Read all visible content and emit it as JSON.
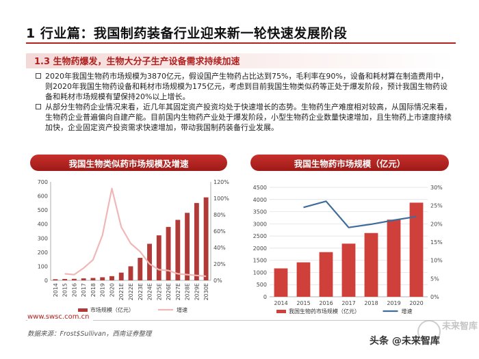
{
  "page": {
    "title": "1 行业篇：我国制药装备行业迎来新一轮快速发展阶段",
    "subtitle": "1.3 生物药爆发，生物大分子生产设备需求持续加速",
    "bullets": [
      "2020年我国生物药市场规模为3870亿元，假设国产生物药占比达到75%，毛利率在90%，设备和耗材算在制造费用中，则2020年我国生物药设备和耗材市场规模为175亿元，考虑到目前我国生物类似药等正处于爆发阶段，预计我国生物药设备和耗材市场规模有望保持20%以上增长。",
      "从部分生物药企业情况来看，近几年其固定资产投资均处于快速增长的态势。生物药生产难度相对较高，从国际情况来看，生物药企业普遍偏向自建产能。目前国内生物药产业处于爆发阶段，小型生物药企业数量快速增加，且生物药上市速度持续加快，企业固定资产投资需求快速增加，带动我国制药装备行业发展。"
    ]
  },
  "footer": {
    "url": "www.swsc.com.cn",
    "source": "数据来源：Frost$Sullivan，西南证券整理",
    "watermark": "头条 @未来智库",
    "watermark_faint": "未来智库"
  },
  "chart_data": [
    {
      "type": "bar",
      "title": "我国生物类似药市场规模及增速",
      "categories": [
        "2014",
        "2015",
        "2016",
        "2017",
        "2018",
        "2019",
        "2020",
        "2021E",
        "2022E",
        "2023E",
        "2024E",
        "2025E",
        "2026E",
        "2027E",
        "2028E",
        "2029E",
        "2030E"
      ],
      "series": [
        {
          "name": "市场规模（亿元）",
          "kind": "bar",
          "axis": "left",
          "color": "#b03a37",
          "values": [
            8,
            10,
            11,
            14,
            17,
            22,
            30,
            55,
            100,
            160,
            260,
            320,
            380,
            430,
            480,
            550,
            590
          ]
        },
        {
          "name": "增速",
          "kind": "line",
          "axis": "right",
          "color": "#f0b7b7",
          "values": [
            null,
            8,
            7,
            15,
            25,
            55,
            112,
            65,
            45,
            35,
            20,
            13,
            12,
            8,
            7,
            6,
            5
          ]
        }
      ],
      "left_ylim": [
        0,
        700
      ],
      "left_ticks": [
        "0",
        "100",
        "200",
        "300",
        "400",
        "500",
        "600",
        "700"
      ],
      "right_ylim": [
        0,
        120
      ],
      "right_ticks": [
        "0%",
        "20%",
        "40%",
        "60%",
        "80%",
        "100%",
        "120%"
      ]
    },
    {
      "type": "bar",
      "title": "我国生物药市场规模（亿元）",
      "categories": [
        "2014",
        "2015",
        "2016",
        "2017",
        "2018",
        "2019",
        "2020"
      ],
      "series": [
        {
          "name": "我国生物药市场规模（亿元）",
          "kind": "bar",
          "axis": "left",
          "color": "#cf403b",
          "values": [
            1167,
            1416,
            1836,
            2185,
            2622,
            3172,
            3870
          ]
        },
        {
          "name": "增速",
          "kind": "line",
          "axis": "right",
          "color": "#3f6c99",
          "values": [
            null,
            24.5,
            26.2,
            19.0,
            19.9,
            21.0,
            22.0
          ]
        }
      ],
      "left_ylim": [
        0,
        4500
      ],
      "left_ticks": [
        "0",
        "500",
        "1000",
        "1500",
        "2000",
        "2500",
        "3000",
        "3500",
        "4000",
        "4500"
      ],
      "right_ylim": [
        0,
        30
      ],
      "right_ticks": [
        "0%",
        "5%",
        "10%",
        "15%",
        "20%",
        "25%",
        "30%"
      ]
    }
  ]
}
